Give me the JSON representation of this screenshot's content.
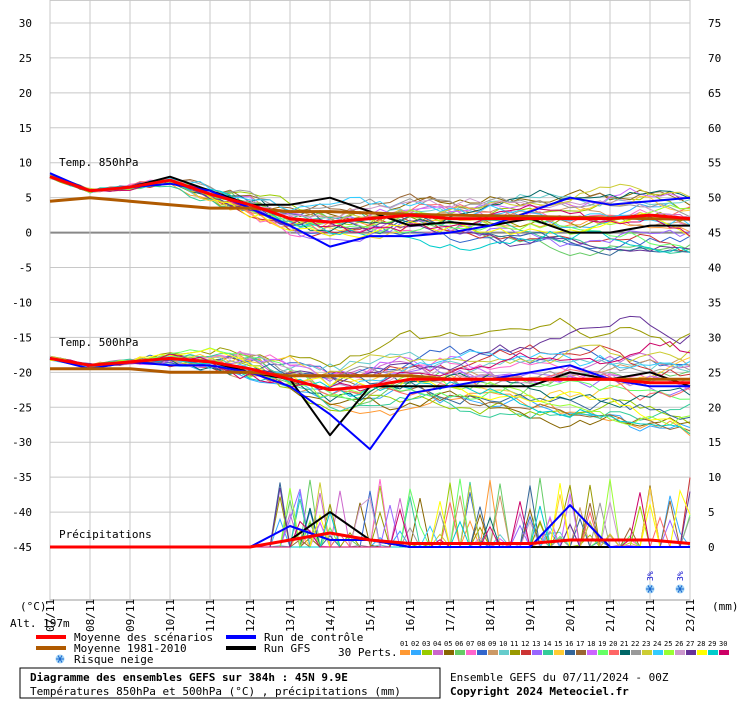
{
  "chart_data": {
    "type": "line",
    "title": "Diagramme des ensembles GEFS sur 384h : 45N 9.9E",
    "subtitle": "Températures 850hPa et 500hPa (°C) , précipitations (mm)",
    "run_info": "Ensemble GEFS du 07/11/2024 - 00Z",
    "copyright": "Copyright 2024 Meteociel.fr",
    "altitude": "Alt. 197m",
    "left_unit": "(°C)",
    "right_unit": "(mm)",
    "left_ticks": [
      "30",
      "25",
      "20",
      "15",
      "10",
      "5",
      "0",
      "-5",
      "-10",
      "-15",
      "-20",
      "-25",
      "-30",
      "-35",
      "-40",
      "-45"
    ],
    "right_ticks": [
      "75",
      "70",
      "65",
      "60",
      "55",
      "50",
      "45",
      "40",
      "35",
      "30",
      "25",
      "20",
      "15",
      "10",
      "5",
      "0"
    ],
    "ylim_temp": [
      -45,
      30
    ],
    "ylim_precip": [
      0,
      75
    ],
    "x_labels": [
      "07/11",
      "08/11",
      "09/11",
      "10/11",
      "11/11",
      "12/11",
      "13/11",
      "14/11",
      "15/11",
      "16/11",
      "17/11",
      "18/11",
      "19/11",
      "20/11",
      "21/11",
      "22/11",
      "23/11"
    ],
    "label_850": "Temp. 850hPa",
    "label_500": "Temp. 500hPa",
    "label_precip": "Précipitations",
    "snow_risk": [
      {
        "day": 15.0,
        "percent": "3%"
      },
      {
        "day": 15.75,
        "percent": "3%"
      }
    ],
    "legend": {
      "mean": "Moyenne des scénarios",
      "clim": "Moyenne 1981-2010",
      "snow": "Risque neige",
      "control": "Run de contrôle",
      "gfs": "Run GFS",
      "perts": "30 Perts.",
      "pert_numbers": [
        "01",
        "02",
        "03",
        "04",
        "05",
        "06",
        "07",
        "08",
        "09",
        "10",
        "11",
        "12",
        "13",
        "14",
        "15",
        "16",
        "17",
        "18",
        "19",
        "20",
        "21",
        "22",
        "23",
        "24",
        "25",
        "26",
        "27",
        "28",
        "29",
        "30"
      ]
    },
    "colors": {
      "mean": "#ff0000",
      "clim": "#b05a00",
      "control": "#0000ff",
      "gfs": "#000000",
      "perts": [
        "#ff9933",
        "#33aaff",
        "#99cc00",
        "#cc66cc",
        "#886600",
        "#66cc66",
        "#ff66cc",
        "#3366cc",
        "#cc9966",
        "#66cccc",
        "#999900",
        "#cc3333",
        "#9966ff",
        "#33cc99",
        "#ffcc33",
        "#336699",
        "#996633",
        "#cc66ff",
        "#66ff66",
        "#ff6666",
        "#006666",
        "#999999",
        "#cccc33",
        "#33ccff",
        "#99ff33",
        "#cc99cc",
        "#663399",
        "#ffff00",
        "#00cccc",
        "#cc0066"
      ]
    },
    "series": [
      {
        "name": "Moyenne des scénarios",
        "level": "850hPa",
        "x": [
          0,
          1,
          2,
          3,
          4,
          5,
          6,
          7,
          8,
          9,
          10,
          11,
          12,
          13,
          14,
          15,
          16
        ],
        "values": [
          8,
          6,
          6.5,
          7.5,
          5.5,
          4,
          2,
          1.5,
          2,
          2.5,
          2,
          2,
          2,
          2,
          2,
          2.5,
          2
        ]
      },
      {
        "name": "Moyenne 1981-2010",
        "level": "850hPa",
        "x": [
          0,
          1,
          2,
          3,
          4,
          5,
          6,
          7,
          8,
          9,
          10,
          11,
          12,
          13,
          14,
          15,
          16
        ],
        "values": [
          4.5,
          5,
          4.5,
          4,
          3.5,
          3.5,
          3,
          3,
          2.8,
          2.6,
          2.5,
          2.4,
          2.3,
          2.2,
          2.1,
          2,
          1.9
        ]
      },
      {
        "name": "Run de contrôle",
        "level": "850hPa",
        "x": [
          0,
          1,
          2,
          3,
          4,
          5,
          6,
          7,
          8,
          9,
          10,
          11,
          12,
          13,
          14,
          15,
          16
        ],
        "values": [
          8.5,
          6,
          6.5,
          7,
          6,
          3.5,
          1,
          -2,
          -0.5,
          -0.5,
          0,
          1,
          3,
          5,
          4,
          4.5,
          5
        ]
      },
      {
        "name": "Run GFS",
        "level": "850hPa",
        "x": [
          0,
          1,
          2,
          3,
          4,
          5,
          6,
          7,
          8,
          9,
          10,
          11,
          12,
          13,
          14,
          15,
          16
        ],
        "values": [
          8,
          6,
          6.5,
          8,
          6,
          4,
          4,
          5,
          3,
          1,
          1.5,
          1,
          2,
          0,
          0,
          1,
          1
        ]
      },
      {
        "name": "Moyenne des scénarios",
        "level": "500hPa",
        "x": [
          0,
          1,
          2,
          3,
          4,
          5,
          6,
          7,
          8,
          9,
          10,
          11,
          12,
          13,
          14,
          15,
          16
        ],
        "values": [
          -18,
          -19,
          -18.5,
          -18,
          -18.5,
          -19.5,
          -21,
          -22.5,
          -22,
          -21,
          -21,
          -21,
          -21,
          -21,
          -21,
          -21.5,
          -21.5
        ]
      },
      {
        "name": "Moyenne 1981-2010",
        "level": "500hPa",
        "x": [
          0,
          1,
          2,
          3,
          4,
          5,
          6,
          7,
          8,
          9,
          10,
          11,
          12,
          13,
          14,
          15,
          16
        ],
        "values": [
          -19.5,
          -19.5,
          -19.5,
          -20,
          -20,
          -20,
          -20.5,
          -20.5,
          -20.5,
          -20.5,
          -21,
          -21,
          -21,
          -21,
          -21,
          -21,
          -21
        ]
      },
      {
        "name": "Run de contrôle",
        "level": "500hPa",
        "x": [
          0,
          1,
          2,
          3,
          4,
          5,
          6,
          7,
          8,
          9,
          10,
          11,
          12,
          13,
          14,
          15,
          16
        ],
        "values": [
          -18,
          -19.5,
          -18.5,
          -19,
          -19,
          -20,
          -22,
          -26,
          -31,
          -23,
          -22,
          -21,
          -20,
          -19,
          -21,
          -22,
          -22
        ]
      },
      {
        "name": "Run GFS",
        "level": "500hPa",
        "x": [
          0,
          1,
          2,
          3,
          4,
          5,
          6,
          7,
          8,
          9,
          10,
          11,
          12,
          13,
          14,
          15,
          16
        ],
        "values": [
          -18,
          -19,
          -18.5,
          -18,
          -18.5,
          -20,
          -21,
          -29,
          -22,
          -22,
          -22,
          -22,
          -22,
          -20,
          -21,
          -20,
          -22
        ]
      },
      {
        "name": "Moyenne des scénarios",
        "level": "precip",
        "x": [
          0,
          1,
          2,
          3,
          4,
          5,
          6,
          7,
          8,
          9,
          10,
          11,
          12,
          13,
          14,
          15,
          16
        ],
        "values": [
          0,
          0,
          0,
          0,
          0,
          0,
          1,
          2,
          1,
          0.5,
          0.5,
          0.5,
          0.5,
          1,
          1,
          1,
          0.5
        ]
      },
      {
        "name": "Run de contrôle",
        "level": "precip",
        "x": [
          0,
          1,
          2,
          3,
          4,
          5,
          6,
          7,
          8,
          9,
          10,
          11,
          12,
          13,
          14,
          15,
          16
        ],
        "values": [
          0,
          0,
          0,
          0,
          0,
          0,
          3,
          1,
          1,
          0,
          0,
          0,
          0,
          6,
          0,
          0,
          0
        ]
      },
      {
        "name": "Run GFS",
        "level": "precip",
        "x": [
          0,
          1,
          2,
          3,
          4,
          5,
          6,
          7,
          8,
          9,
          10,
          11,
          12,
          13,
          14,
          15,
          16
        ],
        "values": [
          0,
          0,
          0,
          0,
          0,
          0,
          1,
          5,
          1,
          0,
          0,
          0,
          0,
          0,
          0,
          0,
          0
        ]
      }
    ]
  }
}
